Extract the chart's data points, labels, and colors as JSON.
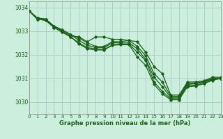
{
  "xlabel": "Graphe pression niveau de la mer (hPa)",
  "ylim": [
    1029.5,
    1034.25
  ],
  "xlim": [
    0,
    23
  ],
  "yticks": [
    1030,
    1031,
    1032,
    1033,
    1034
  ],
  "xticks": [
    0,
    1,
    2,
    3,
    4,
    5,
    6,
    7,
    8,
    9,
    10,
    11,
    12,
    13,
    14,
    15,
    16,
    17,
    18,
    19,
    20,
    21,
    22,
    23
  ],
  "bg_color": "#cceedd",
  "line_color": "#1a5e1a",
  "grid_color": "#aacccc",
  "series": [
    [
      1033.85,
      1033.55,
      1033.5,
      1033.2,
      1033.0,
      1032.8,
      1032.75,
      1032.55,
      1032.75,
      1032.75,
      1032.65,
      1032.65,
      1032.6,
      1032.55,
      1032.1,
      1031.5,
      1031.2,
      1030.3,
      1030.3,
      1030.85,
      1030.85,
      1030.9,
      1031.05,
      1031.05
    ],
    [
      1033.85,
      1033.55,
      1033.5,
      1033.2,
      1033.05,
      1032.85,
      1032.7,
      1032.5,
      1032.35,
      1032.35,
      1032.55,
      1032.55,
      1032.6,
      1032.35,
      1031.95,
      1031.2,
      1030.85,
      1030.25,
      1030.25,
      1030.8,
      1030.8,
      1030.88,
      1031.0,
      1031.0
    ],
    [
      1033.85,
      1033.55,
      1033.5,
      1033.2,
      1033.05,
      1032.85,
      1032.6,
      1032.4,
      1032.3,
      1032.3,
      1032.5,
      1032.5,
      1032.5,
      1032.25,
      1031.8,
      1031.05,
      1030.65,
      1030.2,
      1030.2,
      1030.75,
      1030.78,
      1030.85,
      1030.98,
      1031.0
    ],
    [
      1033.85,
      1033.5,
      1033.45,
      1033.15,
      1032.95,
      1032.75,
      1032.5,
      1032.3,
      1032.25,
      1032.22,
      1032.42,
      1032.45,
      1032.45,
      1032.1,
      1031.75,
      1030.85,
      1030.45,
      1030.15,
      1030.15,
      1030.7,
      1030.72,
      1030.8,
      1030.95,
      1031.0
    ],
    [
      1033.85,
      1033.5,
      1033.45,
      1033.15,
      1032.95,
      1032.75,
      1032.45,
      1032.25,
      1032.2,
      1032.2,
      1032.4,
      1032.42,
      1032.42,
      1031.9,
      1031.55,
      1030.75,
      1030.35,
      1030.1,
      1030.1,
      1030.65,
      1030.68,
      1030.78,
      1030.92,
      1031.0
    ]
  ]
}
